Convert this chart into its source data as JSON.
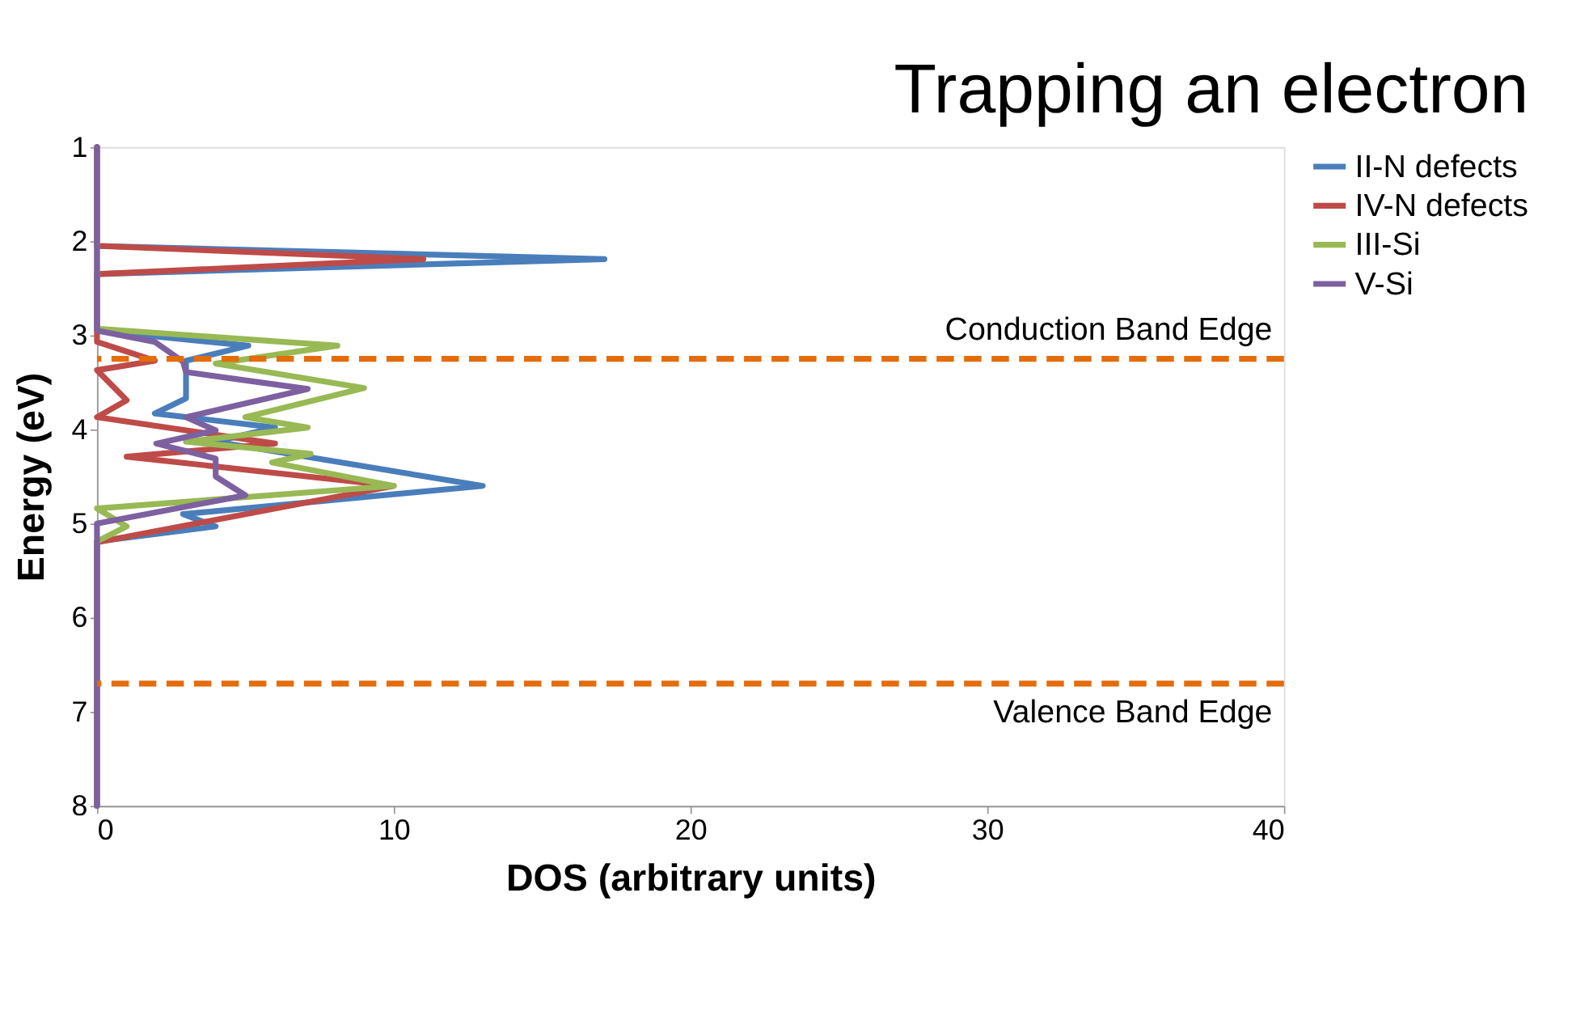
{
  "chart_data": {
    "type": "line",
    "title": "Trapping an electron",
    "xlabel": "DOS (arbitrary units)",
    "ylabel": "Energy (eV)",
    "xlim": [
      0,
      40
    ],
    "xticks": [
      0,
      10,
      20,
      30,
      40
    ],
    "ylim": [
      8,
      1
    ],
    "yticks": [
      1,
      2,
      3,
      4,
      5,
      6,
      7,
      8
    ],
    "grid": false,
    "legend": "right",
    "marker": "none",
    "line_style": "solid",
    "series": [
      {
        "name": "II-N defects",
        "color": "#4a7ebb",
        "x": [
          0,
          0,
          17.1,
          0,
          0,
          5.1,
          3.0,
          3.0,
          1.95,
          6.0,
          4.0,
          13.0,
          2.9,
          4.0,
          0,
          0
        ],
        "values": [
          1,
          2.05,
          2.19,
          2.35,
          2.95,
          3.11,
          3.27,
          3.67,
          3.83,
          3.98,
          4.13,
          4.6,
          4.9,
          5.03,
          5.19,
          8
        ]
      },
      {
        "name": "IV-N defects",
        "color": "#be4b48",
        "x": [
          0,
          0,
          11.0,
          0,
          0,
          1.95,
          0,
          1.0,
          0,
          6.0,
          1.0,
          10.0,
          0,
          0
        ],
        "values": [
          1,
          2.05,
          2.19,
          2.35,
          3.07,
          3.27,
          3.37,
          3.69,
          3.87,
          4.15,
          4.29,
          4.6,
          5.2,
          8
        ]
      },
      {
        "name": "III-Si",
        "color": "#98b954",
        "x": [
          0,
          0,
          8.1,
          4.0,
          9.0,
          5.0,
          7.1,
          3.0,
          7.2,
          5.9,
          10.0,
          0,
          1.0,
          0,
          0
        ],
        "values": [
          1,
          2.93,
          3.11,
          3.3,
          3.56,
          3.87,
          3.98,
          4.13,
          4.26,
          4.35,
          4.6,
          4.84,
          5.03,
          5.19,
          8
        ]
      },
      {
        "name": "V-Si",
        "color": "#7d60a0",
        "x": [
          0,
          0,
          1.95,
          2.9,
          3.0,
          7.1,
          3.0,
          4.0,
          2.0,
          4.0,
          4.0,
          5.0,
          0,
          0
        ],
        "values": [
          1,
          2.95,
          3.07,
          3.28,
          3.39,
          3.57,
          3.87,
          4.01,
          4.15,
          4.31,
          4.5,
          4.7,
          5.0,
          8
        ]
      }
    ],
    "ref_lines": [
      {
        "axis": "y",
        "value": 3.25,
        "label": "Conduction Band Edge",
        "color": "#e46c0a",
        "line_style": "dashed"
      },
      {
        "axis": "y",
        "value": 6.7,
        "label": "Valence Band Edge",
        "color": "#e46c0a",
        "line_style": "dashed"
      }
    ]
  }
}
